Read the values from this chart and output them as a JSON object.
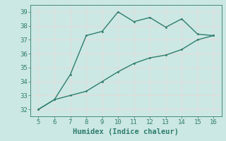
{
  "upper_x": [
    5,
    6,
    7,
    8,
    9,
    10,
    11,
    12,
    13,
    14,
    15,
    16
  ],
  "upper_y": [
    32.0,
    32.7,
    34.5,
    37.3,
    37.6,
    39.0,
    38.3,
    38.6,
    37.9,
    38.5,
    37.4,
    37.3
  ],
  "lower_x": [
    5,
    6,
    7,
    8,
    9,
    10,
    11,
    12,
    13,
    14,
    15,
    16
  ],
  "lower_y": [
    32.0,
    32.7,
    33.0,
    33.3,
    34.0,
    34.7,
    35.3,
    35.7,
    35.9,
    36.3,
    37.0,
    37.3
  ],
  "line_color": "#2e7d6e",
  "bg_color": "#cce8e4",
  "grid_color": "#b0d8d4",
  "xlabel": "Humidex (Indice chaleur)",
  "xlim": [
    5,
    16
  ],
  "ylim": [
    31.5,
    39.5
  ],
  "xticks": [
    5,
    6,
    7,
    8,
    9,
    10,
    11,
    12,
    13,
    14,
    15,
    16
  ],
  "yticks": [
    32,
    33,
    34,
    35,
    36,
    37,
    38,
    39
  ],
  "tick_fontsize": 6.5,
  "xlabel_fontsize": 7.5
}
